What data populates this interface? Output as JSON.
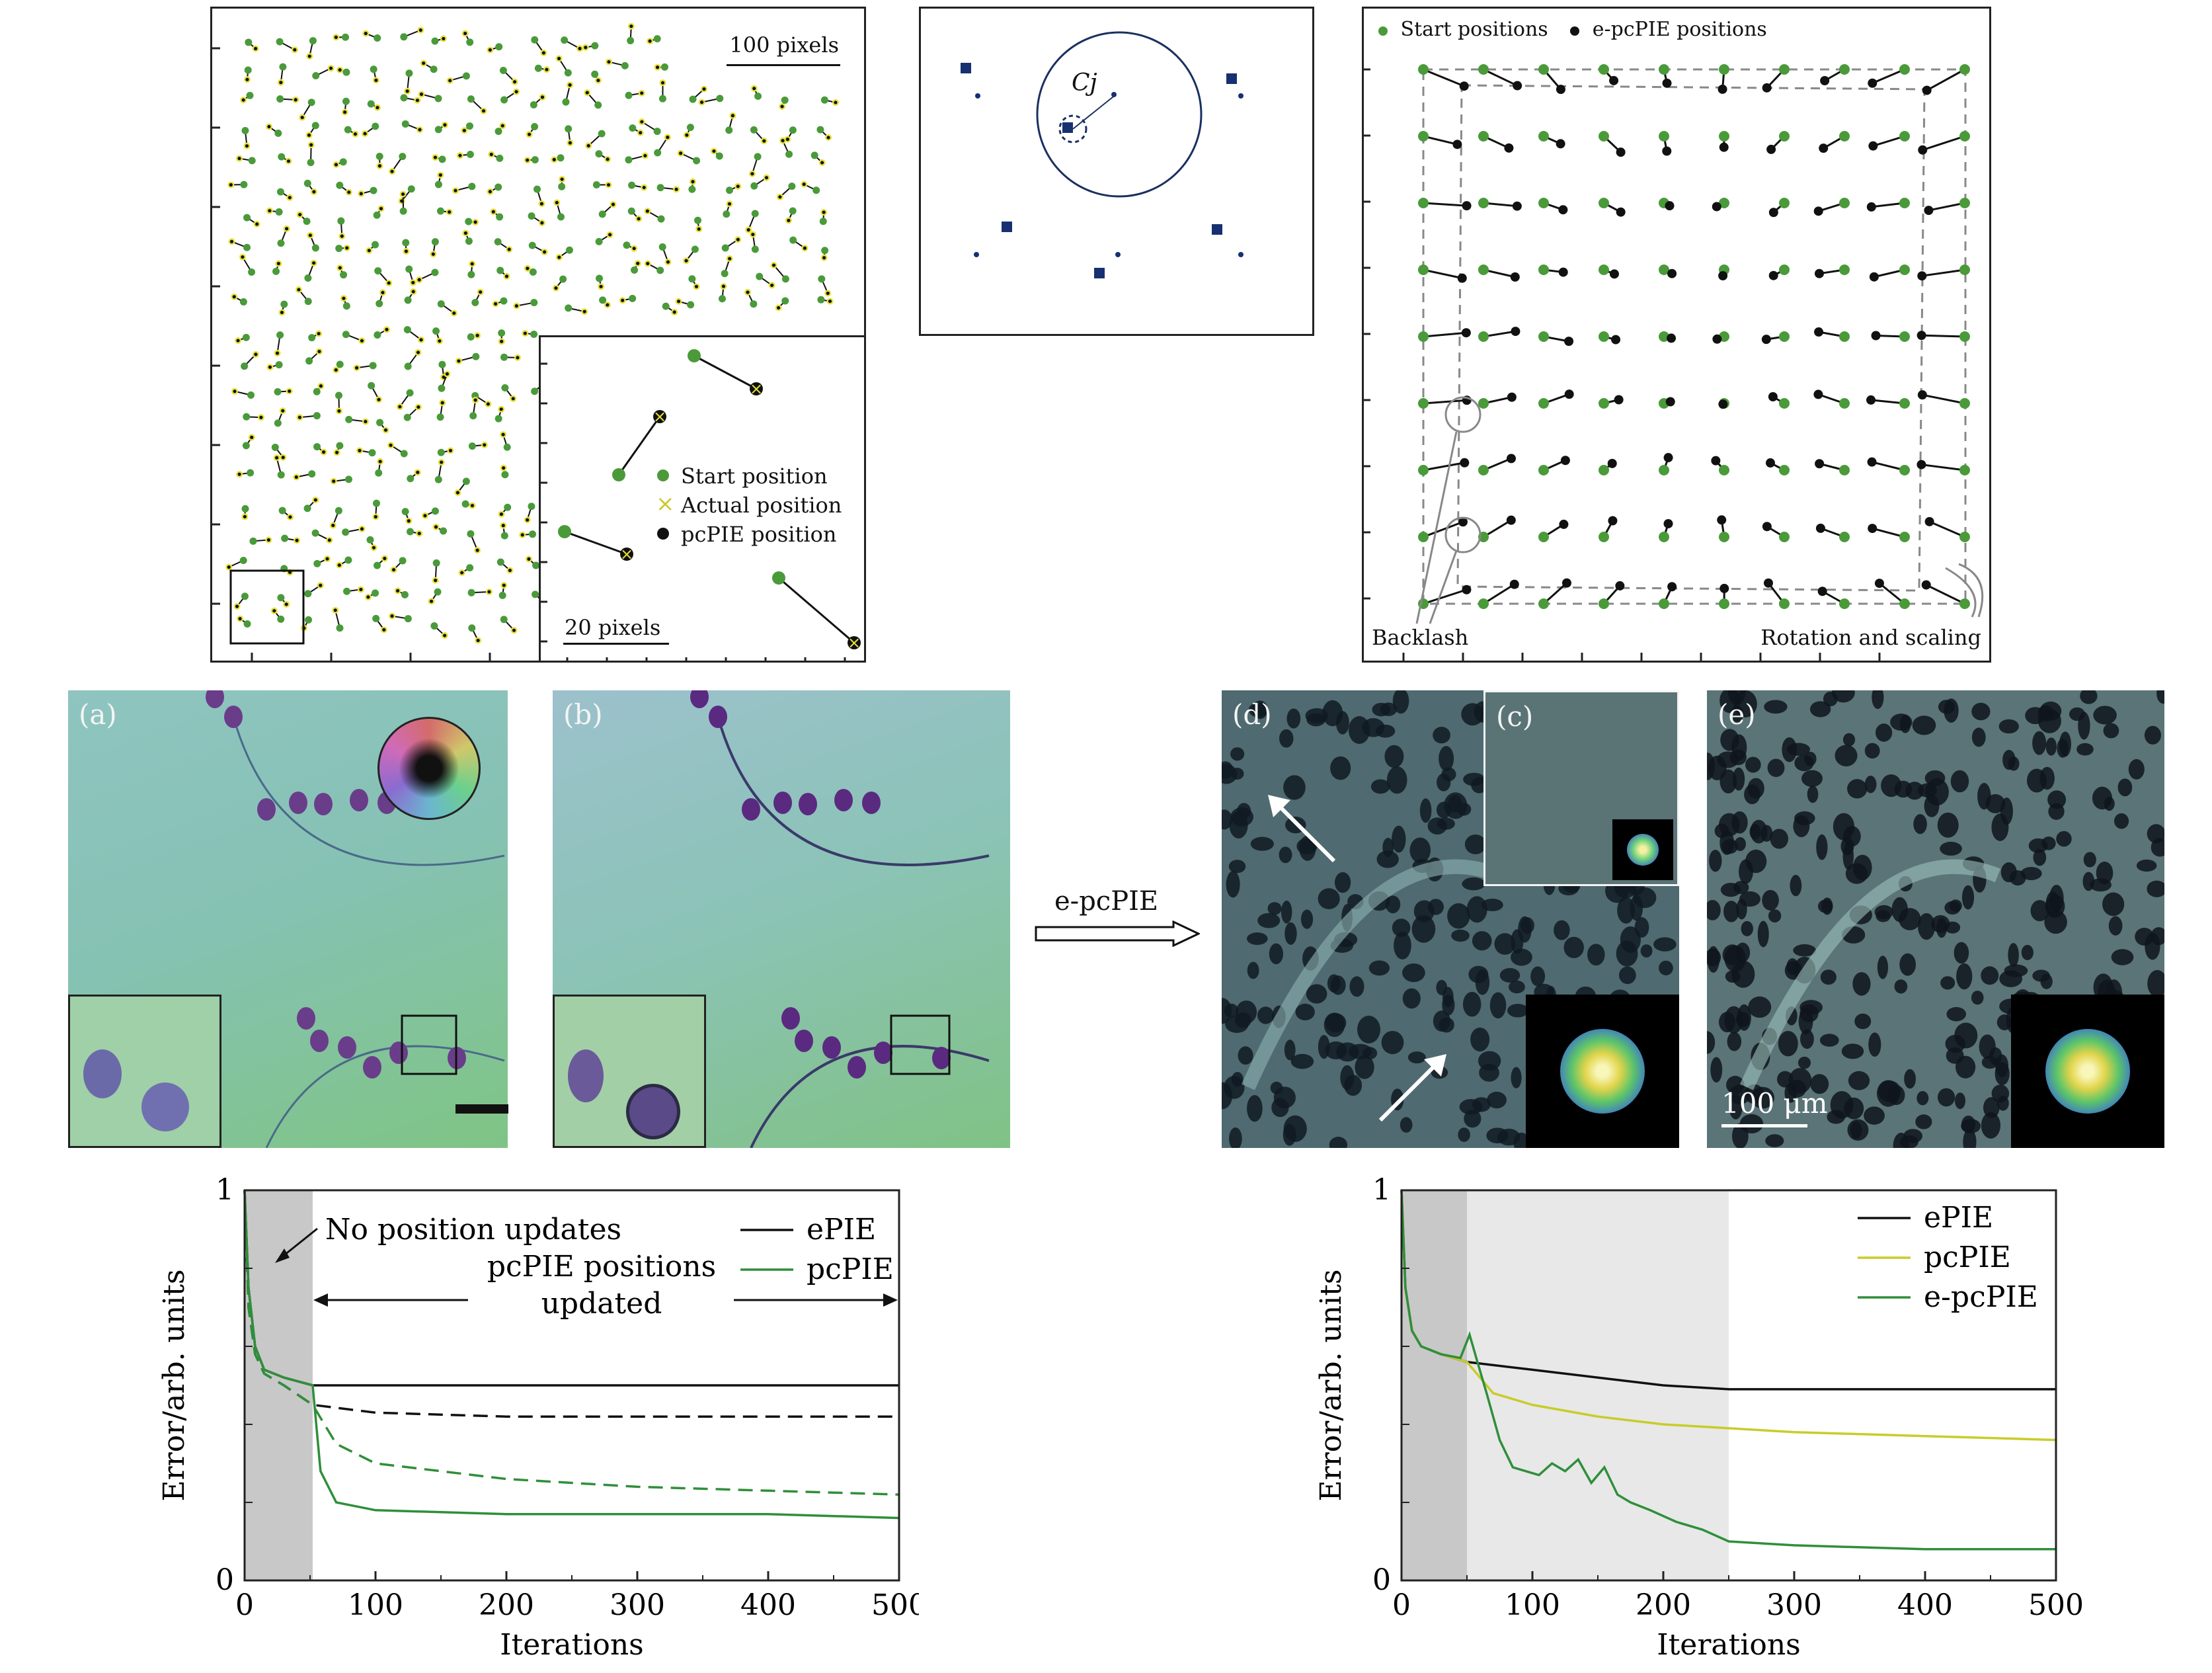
{
  "panel_top_left": {
    "scale_main": "100 pixels",
    "scale_inset": "20 pixels",
    "legend": [
      "Start position",
      "Actual position",
      "pcPIE position"
    ],
    "colors": {
      "start": "#4a9a3a",
      "actual": "#e6e23a",
      "pcpie": "#111111"
    }
  },
  "panel_top_mid": {
    "circle_label": "Cj"
  },
  "panel_top_right": {
    "legend": [
      "Start positions",
      "e-pcPIE positions"
    ],
    "annotation_left": "Backlash",
    "annotation_right": "Rotation and scaling"
  },
  "images": {
    "a_label": "(a)",
    "b_label": "(b)",
    "c_label": "(c)",
    "d_label": "(d)",
    "e_label": "(e)",
    "arrow_label": "e-pcPIE",
    "scale_bar_text": "100 μm"
  },
  "chart_data": [
    {
      "type": "line",
      "xlabel": "Iterations",
      "ylabel": "Error/arb. units",
      "xlim": [
        0,
        500
      ],
      "ylim": [
        0,
        1
      ],
      "xticks": [
        "0",
        "100",
        "200",
        "300",
        "400",
        "500"
      ],
      "yticks": [
        "0",
        "1"
      ],
      "shaded": [
        [
          0,
          52
        ]
      ],
      "annotations": [
        "No position updates",
        "pcPIE positions",
        "updated"
      ],
      "legend": [
        "ePIE",
        "pcPIE"
      ],
      "series": [
        {
          "name": "ePIE",
          "color": "#111111",
          "style": "solid",
          "x": [
            0,
            3,
            8,
            15,
            30,
            52,
            100,
            200,
            300,
            400,
            500
          ],
          "y": [
            1.0,
            0.75,
            0.6,
            0.54,
            0.52,
            0.5,
            0.5,
            0.5,
            0.5,
            0.5,
            0.5
          ]
        },
        {
          "name": "",
          "color": "#111111",
          "style": "dashed",
          "x": [
            0,
            3,
            8,
            15,
            30,
            52,
            100,
            200,
            300,
            400,
            500
          ],
          "y": [
            1.0,
            0.7,
            0.58,
            0.53,
            0.5,
            0.45,
            0.43,
            0.42,
            0.42,
            0.42,
            0.42
          ]
        },
        {
          "name": "pcPIE",
          "color": "#2f8f3a",
          "style": "solid",
          "x": [
            0,
            3,
            8,
            15,
            30,
            52,
            58,
            70,
            100,
            200,
            300,
            400,
            500
          ],
          "y": [
            1.0,
            0.75,
            0.6,
            0.54,
            0.52,
            0.5,
            0.28,
            0.2,
            0.18,
            0.17,
            0.17,
            0.17,
            0.16
          ]
        },
        {
          "name": "",
          "color": "#2f8f3a",
          "style": "dashed",
          "x": [
            0,
            3,
            8,
            15,
            30,
            52,
            70,
            100,
            150,
            200,
            300,
            400,
            500
          ],
          "y": [
            1.0,
            0.7,
            0.58,
            0.53,
            0.5,
            0.45,
            0.35,
            0.3,
            0.28,
            0.26,
            0.24,
            0.23,
            0.22
          ]
        }
      ]
    },
    {
      "type": "line",
      "xlabel": "Iterations",
      "ylabel": "Error/arb. units",
      "xlim": [
        0,
        500
      ],
      "ylim": [
        0,
        1
      ],
      "xticks": [
        "0",
        "100",
        "200",
        "300",
        "400",
        "500"
      ],
      "yticks": [
        "0",
        "1"
      ],
      "shaded": [
        [
          0,
          50
        ],
        [
          50,
          250
        ]
      ],
      "legend": [
        "ePIE",
        "pcPIE",
        "e-pcPIE"
      ],
      "series": [
        {
          "name": "ePIE",
          "color": "#111111",
          "style": "solid",
          "x": [
            0,
            3,
            8,
            15,
            30,
            50,
            100,
            150,
            200,
            250,
            300,
            400,
            500
          ],
          "y": [
            1.0,
            0.75,
            0.64,
            0.6,
            0.58,
            0.56,
            0.54,
            0.52,
            0.5,
            0.49,
            0.49,
            0.49,
            0.49
          ]
        },
        {
          "name": "pcPIE",
          "color": "#c8cc2a",
          "style": "solid",
          "x": [
            0,
            3,
            8,
            15,
            30,
            50,
            70,
            100,
            150,
            200,
            250,
            300,
            400,
            500
          ],
          "y": [
            1.0,
            0.75,
            0.64,
            0.6,
            0.58,
            0.56,
            0.48,
            0.45,
            0.42,
            0.4,
            0.39,
            0.38,
            0.37,
            0.36
          ]
        },
        {
          "name": "e-pcPIE",
          "color": "#2f8f3a",
          "style": "solid",
          "x": [
            0,
            3,
            8,
            15,
            30,
            45,
            52,
            58,
            65,
            75,
            85,
            95,
            105,
            115,
            125,
            135,
            145,
            155,
            165,
            175,
            190,
            210,
            230,
            250,
            300,
            400,
            500
          ],
          "y": [
            1.0,
            0.75,
            0.64,
            0.6,
            0.58,
            0.57,
            0.63,
            0.56,
            0.48,
            0.36,
            0.29,
            0.28,
            0.27,
            0.3,
            0.28,
            0.31,
            0.25,
            0.29,
            0.22,
            0.2,
            0.18,
            0.15,
            0.13,
            0.1,
            0.09,
            0.08,
            0.08
          ]
        }
      ]
    }
  ]
}
